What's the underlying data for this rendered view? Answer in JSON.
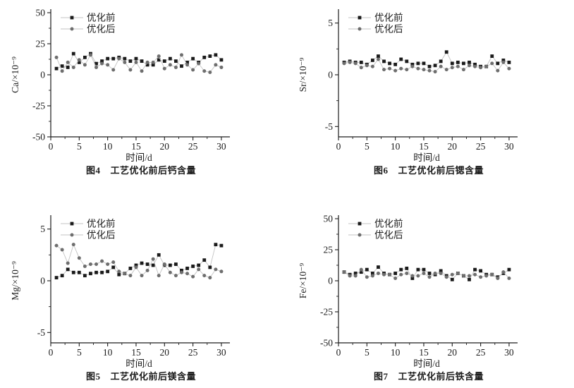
{
  "page": {
    "background": "#ffffff"
  },
  "colors": {
    "axis": "#1c1c1c",
    "connector": "#c3c3c3"
  },
  "chart_data": [
    {
      "id": "ca",
      "type": "line",
      "caption_label": "图4",
      "caption_text": "工艺优化前后钙含量",
      "xlabel": "时间/d",
      "ylabel": "Ca/×10⁻⁹",
      "xlim": [
        0,
        31
      ],
      "ylim": [
        -50,
        50
      ],
      "xticks": [
        0,
        5,
        10,
        15,
        20,
        25,
        30
      ],
      "yticks": [
        -50,
        -25,
        0,
        25,
        50
      ],
      "grid": false,
      "legend_position": "top-left",
      "x": [
        1,
        2,
        3,
        4,
        5,
        6,
        7,
        8,
        9,
        10,
        11,
        12,
        13,
        14,
        15,
        16,
        17,
        18,
        19,
        20,
        21,
        22,
        23,
        24,
        25,
        26,
        27,
        28,
        29,
        30
      ],
      "series": [
        {
          "name": "优化前",
          "marker": "square",
          "color": "#1a1a1a",
          "values": [
            5,
            7,
            6,
            17,
            10,
            14,
            17,
            9,
            11,
            13,
            13,
            14,
            13,
            11,
            13,
            11,
            8,
            8,
            12,
            11,
            13,
            11,
            7,
            10,
            13,
            10,
            14,
            15,
            16,
            12
          ]
        },
        {
          "name": "优化后",
          "marker": "circle",
          "color": "#6e6e6e",
          "values": [
            14,
            3,
            10,
            6,
            12,
            8,
            16,
            6,
            9,
            8,
            4,
            13,
            10,
            4,
            10,
            3,
            10,
            10,
            15,
            5,
            8,
            6,
            16,
            8,
            4,
            9,
            3,
            2,
            8,
            6
          ]
        }
      ]
    },
    {
      "id": "sr",
      "type": "line",
      "caption_label": "图6",
      "caption_text": "工艺优化前后锶含量",
      "xlabel": "时间/d",
      "ylabel": "Sr/×10⁻⁹",
      "xlim": [
        0,
        31
      ],
      "ylim": [
        -6,
        6
      ],
      "xticks": [
        0,
        5,
        10,
        15,
        20,
        25,
        30
      ],
      "yticks": [
        -5,
        0,
        5
      ],
      "grid": false,
      "legend_position": "top-left",
      "x": [
        1,
        2,
        3,
        4,
        5,
        6,
        7,
        8,
        9,
        10,
        11,
        12,
        13,
        14,
        15,
        16,
        17,
        18,
        19,
        20,
        21,
        22,
        23,
        24,
        25,
        26,
        27,
        28,
        29,
        30
      ],
      "series": [
        {
          "name": "优化前",
          "marker": "square",
          "color": "#1a1a1a",
          "values": [
            1.2,
            1.3,
            1.2,
            1.2,
            1.0,
            1.4,
            1.8,
            1.3,
            1.1,
            1.0,
            1.5,
            1.3,
            1.0,
            1.1,
            1.1,
            0.8,
            0.9,
            1.3,
            2.2,
            1.1,
            1.2,
            1.1,
            1.2,
            1.0,
            0.8,
            0.8,
            1.8,
            1.1,
            1.4,
            1.2
          ]
        },
        {
          "name": "优化后",
          "marker": "circle",
          "color": "#6e6e6e",
          "values": [
            1.1,
            1.2,
            1.1,
            0.7,
            0.9,
            0.8,
            1.5,
            0.5,
            0.6,
            0.4,
            0.6,
            0.5,
            0.8,
            0.6,
            0.5,
            0.4,
            0.3,
            0.8,
            0.5,
            0.7,
            0.8,
            0.5,
            0.9,
            0.8,
            0.7,
            0.8,
            1.1,
            0.4,
            1.2,
            0.6
          ]
        }
      ]
    },
    {
      "id": "mg",
      "type": "line",
      "caption_label": "图5",
      "caption_text": "工艺优化前后镁含量",
      "xlabel": "时间/d",
      "ylabel": "Mg/×10⁻⁹",
      "xlim": [
        0,
        31
      ],
      "ylim": [
        -6,
        6
      ],
      "xticks": [
        0,
        5,
        10,
        15,
        20,
        25,
        30
      ],
      "yticks": [
        -5,
        0,
        5
      ],
      "grid": false,
      "legend_position": "top-left",
      "x": [
        1,
        2,
        3,
        4,
        5,
        6,
        7,
        8,
        9,
        10,
        11,
        12,
        13,
        14,
        15,
        16,
        17,
        18,
        19,
        20,
        21,
        22,
        23,
        24,
        25,
        26,
        27,
        28,
        29,
        30
      ],
      "series": [
        {
          "name": "优化前",
          "marker": "square",
          "color": "#1a1a1a",
          "values": [
            0.3,
            0.5,
            1.1,
            0.8,
            0.8,
            0.5,
            0.7,
            0.8,
            0.8,
            0.9,
            1.3,
            0.6,
            0.7,
            1.2,
            1.5,
            1.7,
            1.6,
            1.5,
            2.5,
            1.5,
            1.5,
            1.6,
            1.0,
            1.2,
            1.4,
            1.5,
            2.0,
            1.3,
            3.5,
            3.4
          ]
        },
        {
          "name": "优化后",
          "marker": "circle",
          "color": "#6e6e6e",
          "values": [
            3.4,
            3.0,
            1.7,
            3.5,
            2.2,
            1.4,
            1.6,
            1.6,
            1.9,
            1.6,
            1.8,
            0.9,
            0.7,
            0.5,
            1.3,
            0.5,
            1.0,
            2.1,
            0.5,
            1.6,
            0.8,
            0.5,
            0.8,
            0.7,
            0.4,
            1.1,
            0.5,
            0.3,
            1.1,
            0.9
          ]
        }
      ]
    },
    {
      "id": "fe",
      "type": "line",
      "caption_label": "图7",
      "caption_text": "工艺优化前后铁含量",
      "xlabel": "时间/d",
      "ylabel": "Fe/×10⁻⁹",
      "xlim": [
        0,
        31
      ],
      "ylim": [
        -50,
        50
      ],
      "xticks": [
        0,
        5,
        10,
        15,
        20,
        25,
        30
      ],
      "yticks": [
        -50,
        -25,
        0,
        25,
        50
      ],
      "grid": false,
      "legend_position": "top-left",
      "x": [
        1,
        2,
        3,
        4,
        5,
        6,
        7,
        8,
        9,
        10,
        11,
        12,
        13,
        14,
        15,
        16,
        17,
        18,
        19,
        20,
        21,
        22,
        23,
        24,
        25,
        26,
        27,
        28,
        29,
        30
      ],
      "series": [
        {
          "name": "优化前",
          "marker": "square",
          "color": "#1a1a1a",
          "values": [
            7,
            5,
            6,
            7,
            9,
            6,
            11,
            6,
            5,
            6,
            9,
            10,
            2,
            9,
            9,
            6,
            5,
            8,
            4,
            1,
            6,
            4,
            1,
            9,
            8,
            5,
            5,
            3,
            6,
            9
          ]
        },
        {
          "name": "优化后",
          "marker": "circle",
          "color": "#6e6e6e",
          "values": [
            7,
            4,
            4,
            9,
            3,
            4,
            6,
            5,
            5,
            2,
            5,
            6,
            4,
            4,
            6,
            3,
            6,
            6,
            3,
            5,
            6,
            4,
            4,
            5,
            3,
            4,
            5,
            2,
            7,
            2
          ]
        }
      ]
    }
  ]
}
